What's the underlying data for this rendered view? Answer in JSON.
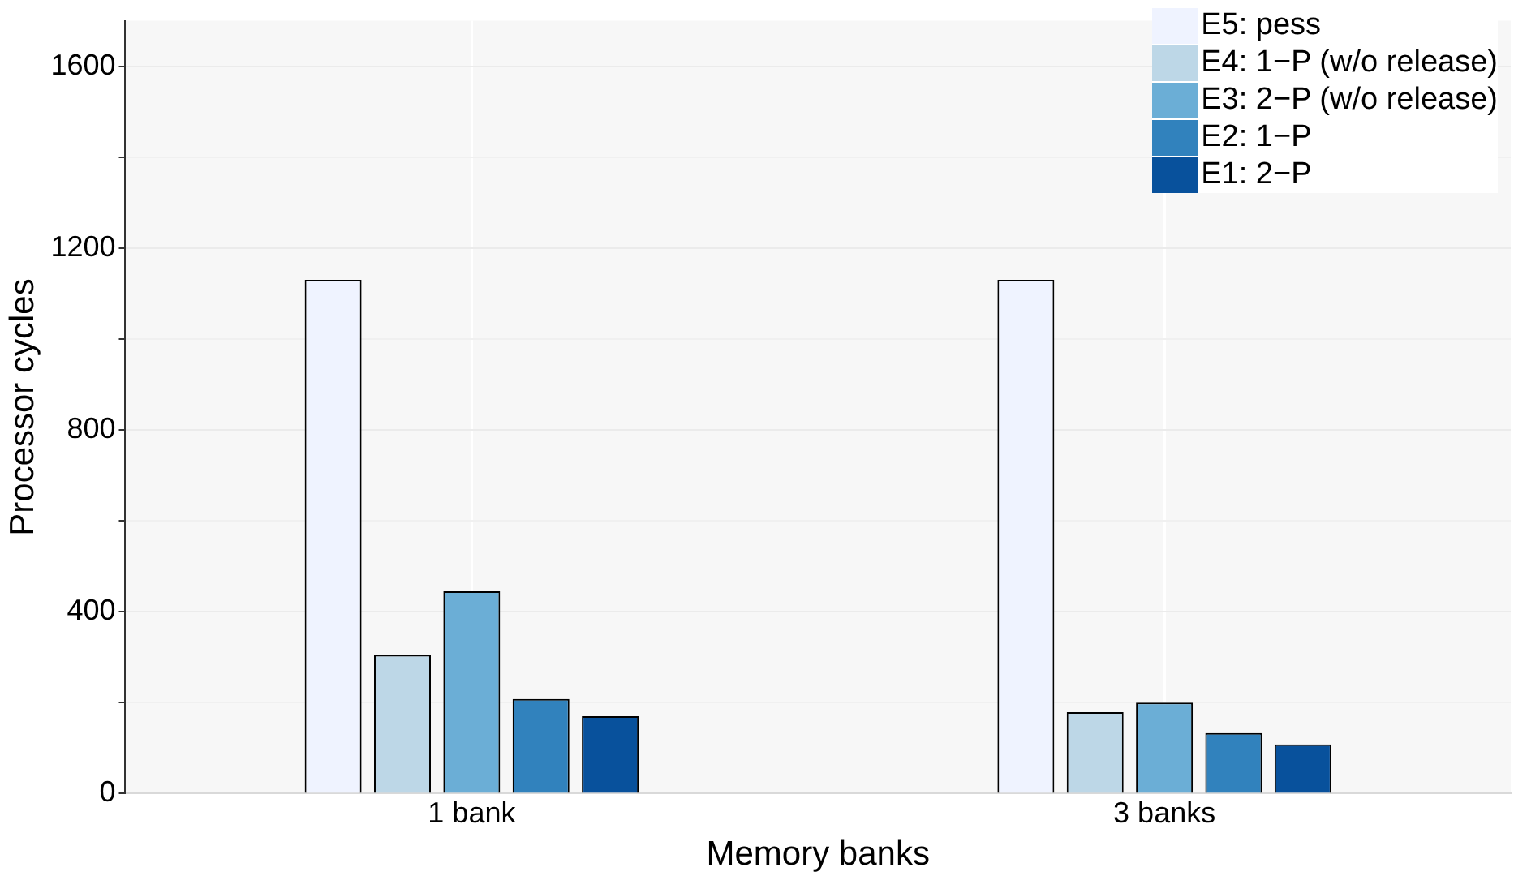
{
  "chart_data": {
    "type": "bar",
    "xlabel": "Memory banks",
    "ylabel": "Processor cycles",
    "categories": [
      "1 bank",
      "3 banks"
    ],
    "series": [
      {
        "name": "E5: pess",
        "color": "#eff3ff",
        "values": [
          1130,
          1130
        ]
      },
      {
        "name": "E4: 1−P (w/o release)",
        "color": "#bdd7e7",
        "values": [
          305,
          179
        ]
      },
      {
        "name": "E3: 2−P (w/o release)",
        "color": "#6baed6",
        "values": [
          445,
          200
        ]
      },
      {
        "name": "E2: 1−P",
        "color": "#3182bd",
        "values": [
          208,
          133
        ]
      },
      {
        "name": "E1: 2−P",
        "color": "#08519c",
        "values": [
          170,
          108
        ]
      }
    ],
    "ylim": [
      0,
      1700
    ],
    "yticks": [
      0,
      {
        "value": 200,
        "label": null
      },
      400,
      {
        "value": 600,
        "label": null
      },
      800,
      {
        "value": 1000,
        "label": null
      },
      1200,
      {
        "value": 1400,
        "label": null
      },
      1600
    ],
    "grid": true,
    "legend": "top right"
  }
}
